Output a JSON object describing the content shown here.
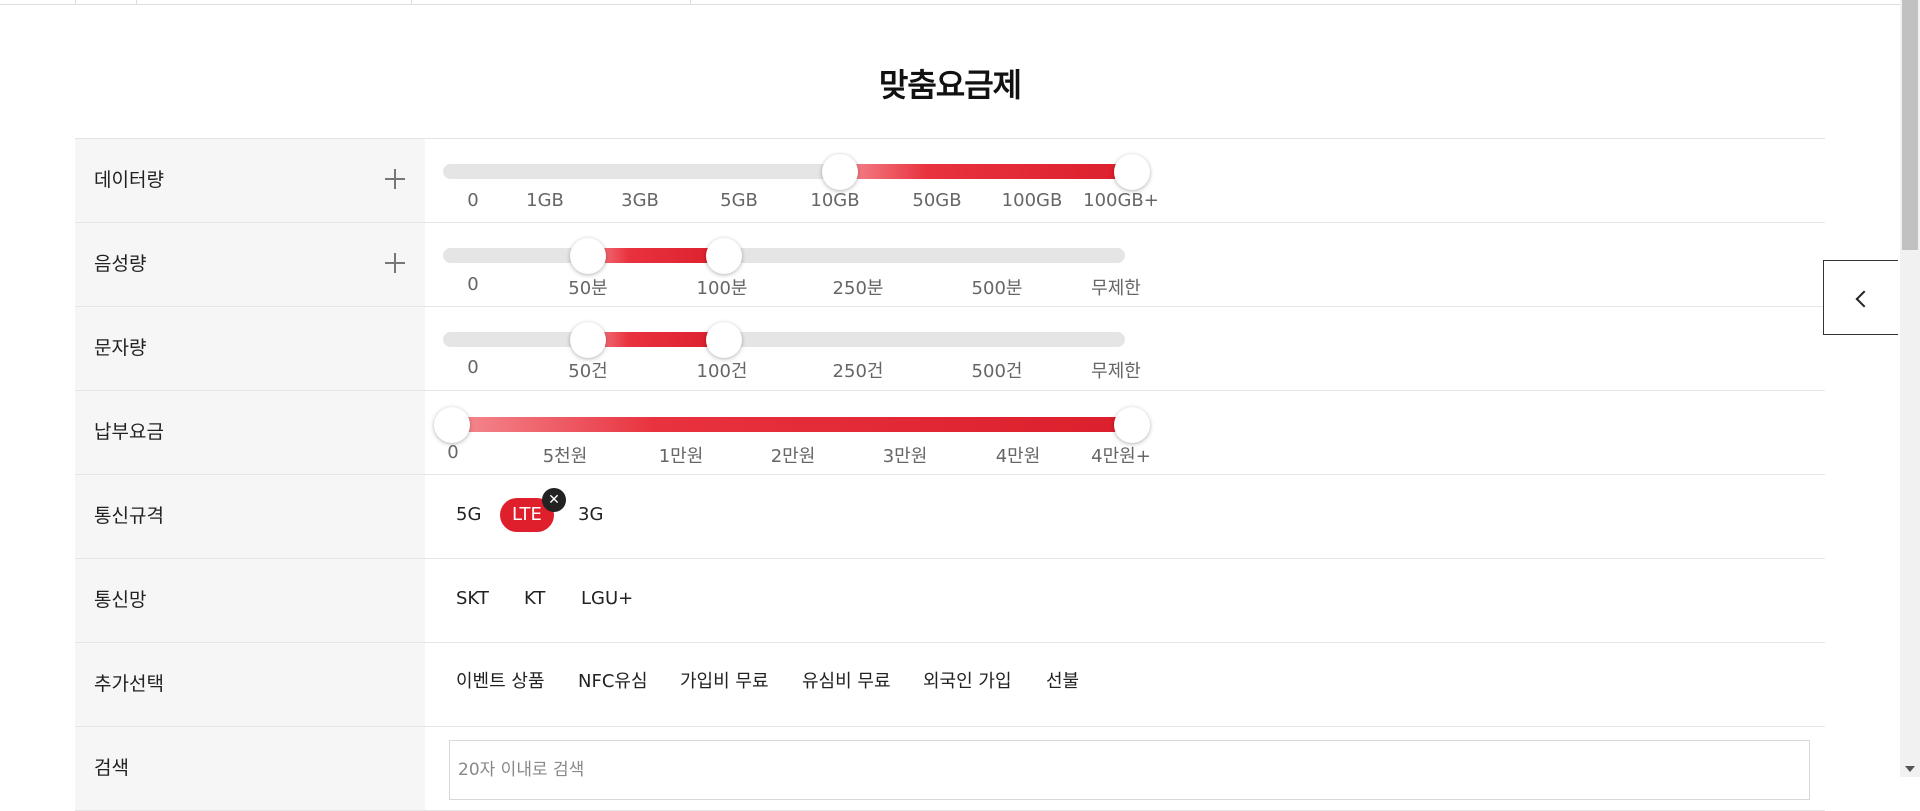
{
  "title": "맞춤요금제",
  "filters": {
    "data": {
      "label": "데이터량",
      "ticks": [
        "0",
        "1GB",
        "3GB",
        "5GB",
        "10GB",
        "50GB",
        "100GB",
        "100GB+"
      ],
      "range_selected": [
        "10GB",
        "100GB+"
      ]
    },
    "voice": {
      "label": "음성량",
      "ticks": [
        "0",
        "50분",
        "100분",
        "250분",
        "500분",
        "무제한"
      ],
      "range_selected": [
        "50분",
        "100분"
      ]
    },
    "sms": {
      "label": "문자량",
      "ticks": [
        "0",
        "50건",
        "100건",
        "250건",
        "500건",
        "무제한"
      ],
      "range_selected": [
        "50건",
        "100건"
      ]
    },
    "fee": {
      "label": "납부요금",
      "ticks": [
        "0",
        "5천원",
        "1만원",
        "2만원",
        "3만원",
        "4만원",
        "4만원+"
      ],
      "range_selected": [
        "0",
        "4만원+"
      ]
    },
    "standard": {
      "label": "통신규격",
      "options": [
        "5G",
        "LTE",
        "3G"
      ],
      "selected": "LTE",
      "close_glyph": "✕"
    },
    "network": {
      "label": "통신망",
      "options": [
        "SKT",
        "KT",
        "LGU+"
      ]
    },
    "extra": {
      "label": "추가선택",
      "options": [
        "이벤트 상품",
        "NFC유심",
        "가입비 무료",
        "유심비 무료",
        "외국인 가입",
        "선불"
      ]
    },
    "search": {
      "label": "검색",
      "placeholder": "20자 이내로 검색"
    }
  },
  "colors": {
    "accent": "#e01f2c",
    "track": "#e5e5e5"
  },
  "icons": {
    "expand": "plus-icon",
    "side_toggle": "chevron-left-icon"
  }
}
